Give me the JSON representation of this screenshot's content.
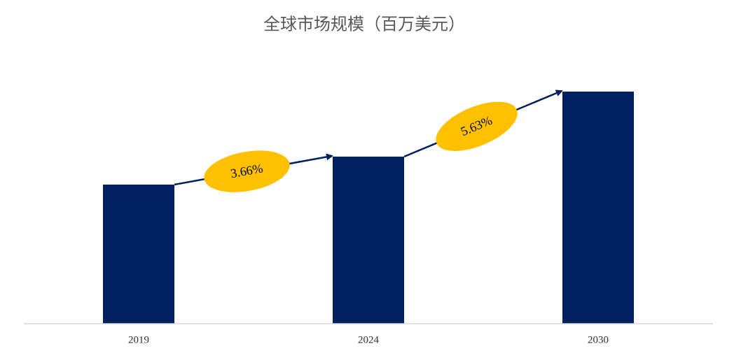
{
  "chart_data": {
    "type": "bar",
    "title": "全球市场规模（百万美元）",
    "categories": [
      "2019",
      "2024",
      "2030"
    ],
    "values": [
      199,
      239,
      332
    ],
    "color": "#002060",
    "ylim": [
      0,
      350
    ],
    "grid": false,
    "annotations": [
      "3.66%",
      "5.63%"
    ],
    "annotation_color": "#ffc000",
    "arrow_color": "#002060"
  }
}
